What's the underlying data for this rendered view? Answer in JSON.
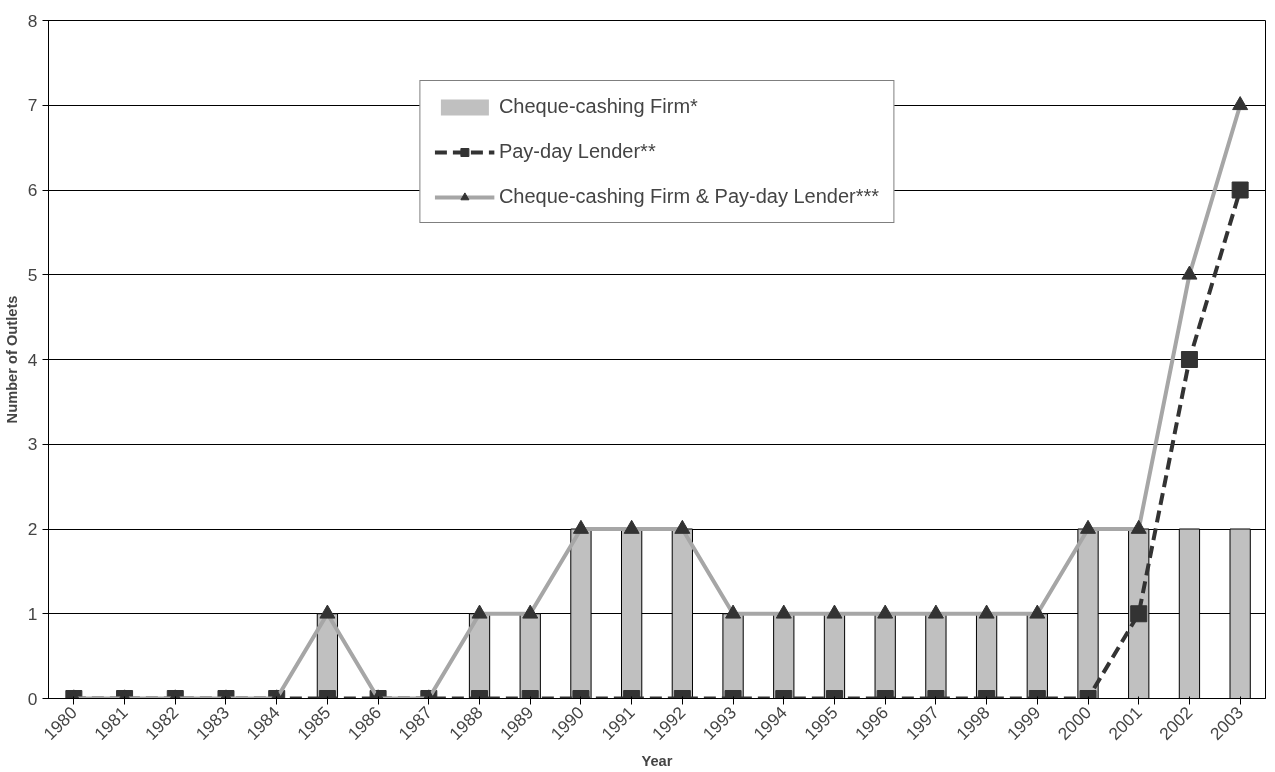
{
  "chart_data": {
    "type": "bar",
    "xlabel": "Year",
    "ylabel": "Number of Outlets",
    "categories": [
      "1980",
      "1981",
      "1982",
      "1983",
      "1984",
      "1985",
      "1986",
      "1987",
      "1988",
      "1989",
      "1990",
      "1991",
      "1992",
      "1993",
      "1994",
      "1995",
      "1996",
      "1997",
      "1998",
      "1999",
      "2000",
      "2001",
      "2002",
      "2003"
    ],
    "ylim": [
      0,
      8
    ],
    "yticks": [
      0,
      1,
      2,
      3,
      4,
      5,
      6,
      7,
      8
    ],
    "grid": "y",
    "legend": "top",
    "series": [
      {
        "name": "Cheque-cashing Firm*",
        "color": "#c0c0c0",
        "values": [
          0,
          0,
          0,
          0,
          0,
          1,
          0,
          0,
          1,
          1,
          2,
          2,
          2,
          1,
          1,
          1,
          1,
          1,
          1,
          1,
          2,
          2,
          2,
          2
        ]
      },
      {
        "name": "Pay-day Lender**",
        "type": "line",
        "color": "#333333",
        "marker": "square",
        "line_style": "dashed",
        "values": [
          0,
          0,
          0,
          0,
          0,
          0,
          0,
          0,
          0,
          0,
          0,
          0,
          0,
          0,
          0,
          0,
          0,
          0,
          0,
          0,
          0,
          1,
          4,
          6
        ]
      },
      {
        "name": "Cheque-cashing Firm & Pay-day Lender***",
        "type": "line",
        "color": "#a6a6a6",
        "marker": "triangle",
        "line_style": "solid",
        "values": [
          0,
          0,
          0,
          0,
          0,
          1,
          0,
          0,
          1,
          1,
          2,
          2,
          2,
          1,
          1,
          1,
          1,
          1,
          1,
          1,
          2,
          2,
          5,
          7
        ]
      }
    ]
  }
}
